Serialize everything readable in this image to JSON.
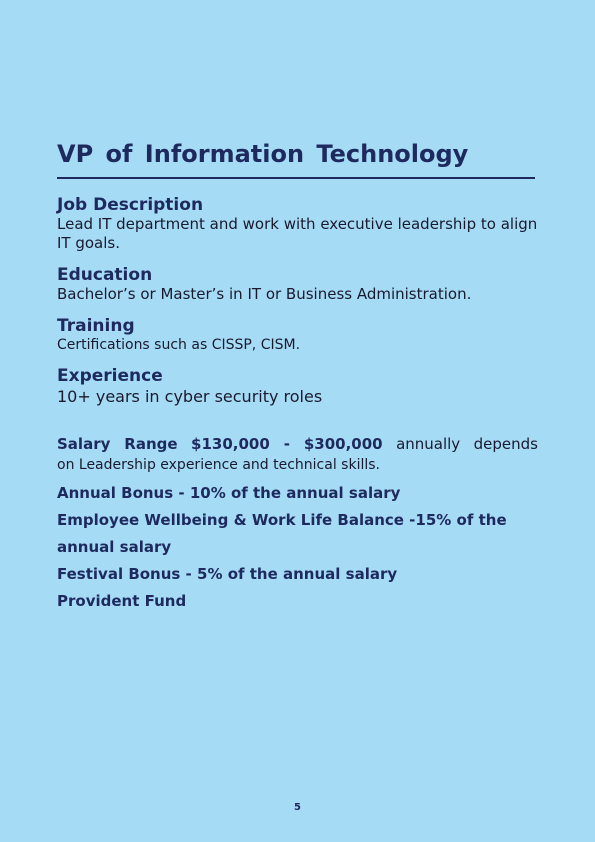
{
  "title": "VP of Information Technology",
  "sections": [
    {
      "heading": "Job Description",
      "text": "Lead IT department and work with executive leadership to align IT goals."
    },
    {
      "heading": "Education",
      "text": "Bachelor’s or Master’s in IT or Business Administration."
    },
    {
      "heading": "Training",
      "text": "Certifications such as CISSP, CISM."
    },
    {
      "heading": "Experience",
      "text": "10+ years in cyber security roles"
    }
  ],
  "salary": {
    "label": "Salary Range",
    "range": "$130,000 - $300,000",
    "suffix": "annually depends",
    "line2": "on Leadership experience and technical skills."
  },
  "benefits": [
    "Annual Bonus - 10% of the annual salary",
    "Employee Wellbeing & Work Life Balance -15% of the annual salary",
    "Festival Bonus - 5% of the annual salary",
    "Provident Fund"
  ],
  "page_number": "5",
  "colors": {
    "background": "#a6dbf6",
    "heading": "#1e2a5e",
    "body": "#1a1a2e"
  }
}
